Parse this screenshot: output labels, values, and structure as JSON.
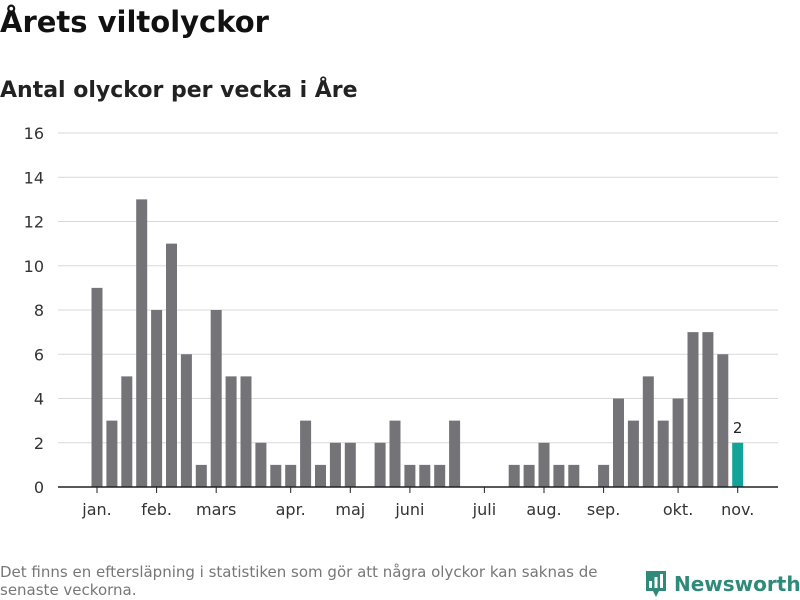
{
  "header": {
    "title": "Årets viltolyckor",
    "subtitle": "Antal olyckor per vecka i Åre"
  },
  "footer": {
    "note": "Det finns en eftersläpning i statistiken som gör att några olyckor kan saknas de senaste veckorna.",
    "brand": "Newsworthy"
  },
  "colors": {
    "bar": "#747378",
    "highlight": "#13a398",
    "grid": "#d9d9d9",
    "axis": "#222222",
    "brand": "#2f8a7a"
  },
  "chart_data": {
    "type": "bar",
    "title": "Antal olyckor per vecka i Åre",
    "xlabel": "",
    "ylabel": "",
    "ylim": [
      0,
      16
    ],
    "yticks": [
      0,
      2,
      4,
      6,
      8,
      10,
      12,
      14,
      16
    ],
    "grid": true,
    "weeks": [
      1,
      2,
      3,
      4,
      5,
      6,
      7,
      8,
      9,
      10,
      11,
      12,
      13,
      14,
      15,
      16,
      17,
      18,
      19,
      20,
      21,
      22,
      23,
      24,
      25,
      26,
      27,
      28,
      29,
      30,
      31,
      32,
      33,
      34,
      35,
      36,
      37,
      38,
      39,
      40,
      41,
      42,
      43,
      44
    ],
    "values": [
      9,
      3,
      5,
      13,
      8,
      11,
      6,
      1,
      8,
      5,
      5,
      2,
      1,
      1,
      3,
      1,
      2,
      2,
      0,
      2,
      3,
      1,
      1,
      1,
      3,
      0,
      0,
      0,
      1,
      1,
      2,
      1,
      1,
      0,
      1,
      4,
      3,
      5,
      3,
      4,
      7,
      7,
      6,
      2
    ],
    "month_labels": [
      {
        "week": 1,
        "label": "jan."
      },
      {
        "week": 5,
        "label": "feb."
      },
      {
        "week": 9,
        "label": "mars"
      },
      {
        "week": 14,
        "label": "apr."
      },
      {
        "week": 18,
        "label": "maj"
      },
      {
        "week": 22,
        "label": "juni"
      },
      {
        "week": 27,
        "label": "juli"
      },
      {
        "week": 31,
        "label": "aug."
      },
      {
        "week": 35,
        "label": "sep."
      },
      {
        "week": 40,
        "label": "okt."
      },
      {
        "week": 44,
        "label": "nov."
      }
    ],
    "highlight_week": 44,
    "highlight_label": "2"
  }
}
